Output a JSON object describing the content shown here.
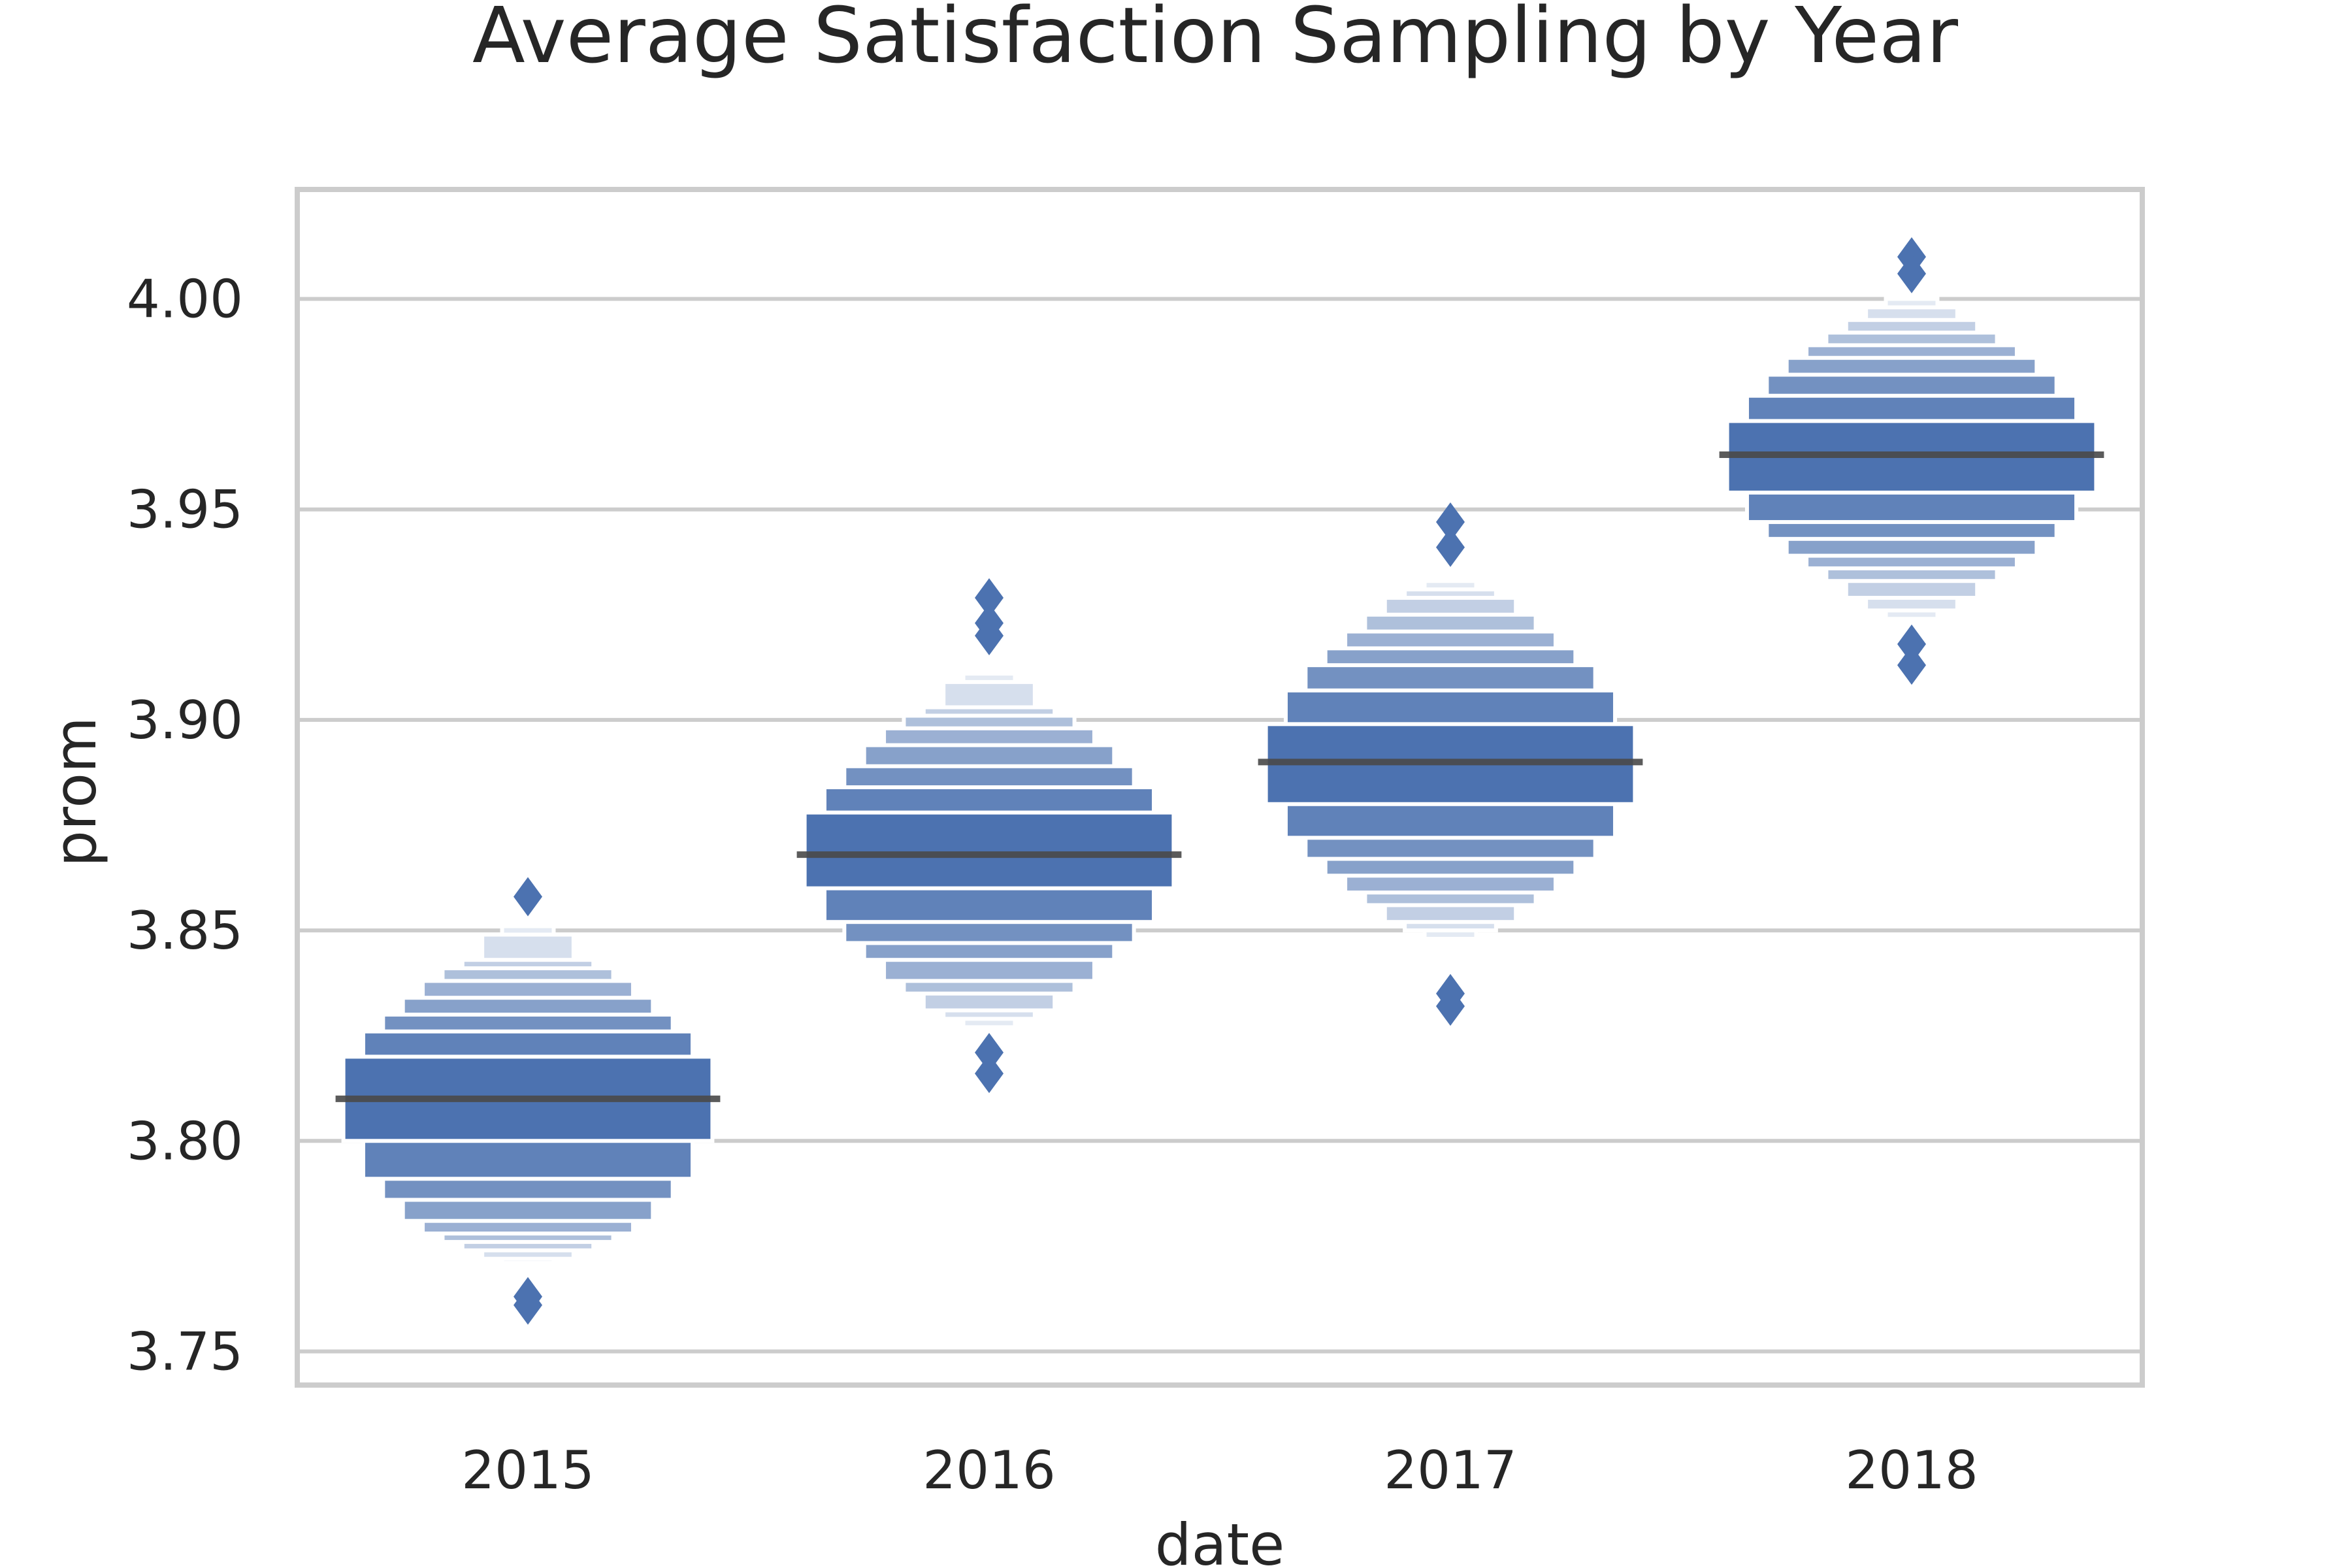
{
  "chart_data": {
    "type": "boxen",
    "title": "Average Satisfaction Sampling by Year",
    "xlabel": "date",
    "ylabel": "prom",
    "categories": [
      "2015",
      "2016",
      "2017",
      "2018"
    ],
    "ylim": [
      3.742,
      4.026
    ],
    "y_ticks": [
      "3.75",
      "3.80",
      "3.85",
      "3.90",
      "3.95",
      "4.00"
    ],
    "grid": true,
    "legend": "none",
    "color": "#4c72b0",
    "series": [
      {
        "category": "2015",
        "median": 3.81,
        "boxes": [
          [
            3.8,
            3.82
          ],
          [
            3.791,
            3.826
          ],
          [
            3.786,
            3.83
          ],
          [
            3.781,
            3.834
          ],
          [
            3.778,
            3.838
          ],
          [
            3.776,
            3.841
          ],
          [
            3.774,
            3.843
          ],
          [
            3.772,
            3.849
          ],
          [
            3.771,
            3.851
          ]
        ],
        "outliers": [
          3.858,
          3.763,
          3.761
        ]
      },
      {
        "category": "2016",
        "median": 3.868,
        "boxes": [
          [
            3.86,
            3.878
          ],
          [
            3.852,
            3.884
          ],
          [
            3.847,
            3.889
          ],
          [
            3.843,
            3.894
          ],
          [
            3.838,
            3.898
          ],
          [
            3.835,
            3.901
          ],
          [
            3.831,
            3.903
          ],
          [
            3.829,
            3.909
          ],
          [
            3.827,
            3.911
          ]
        ],
        "outliers": [
          3.929,
          3.923,
          3.92,
          3.821,
          3.816
        ]
      },
      {
        "category": "2017",
        "median": 3.89,
        "boxes": [
          [
            3.88,
            3.899
          ],
          [
            3.872,
            3.907
          ],
          [
            3.867,
            3.913
          ],
          [
            3.863,
            3.917
          ],
          [
            3.859,
            3.921
          ],
          [
            3.856,
            3.925
          ],
          [
            3.852,
            3.929
          ],
          [
            3.85,
            3.931
          ],
          [
            3.848,
            3.933
          ]
        ],
        "outliers": [
          3.947,
          3.941,
          3.835,
          3.832
        ]
      },
      {
        "category": "2018",
        "median": 3.963,
        "boxes": [
          [
            3.954,
            3.971
          ],
          [
            3.947,
            3.977
          ],
          [
            3.943,
            3.982
          ],
          [
            3.939,
            3.986
          ],
          [
            3.936,
            3.989
          ],
          [
            3.933,
            3.992
          ],
          [
            3.929,
            3.995
          ],
          [
            3.926,
            3.998
          ],
          [
            3.924,
            4.0
          ]
        ],
        "outliers": [
          4.01,
          4.006,
          3.918,
          3.913
        ]
      }
    ]
  }
}
